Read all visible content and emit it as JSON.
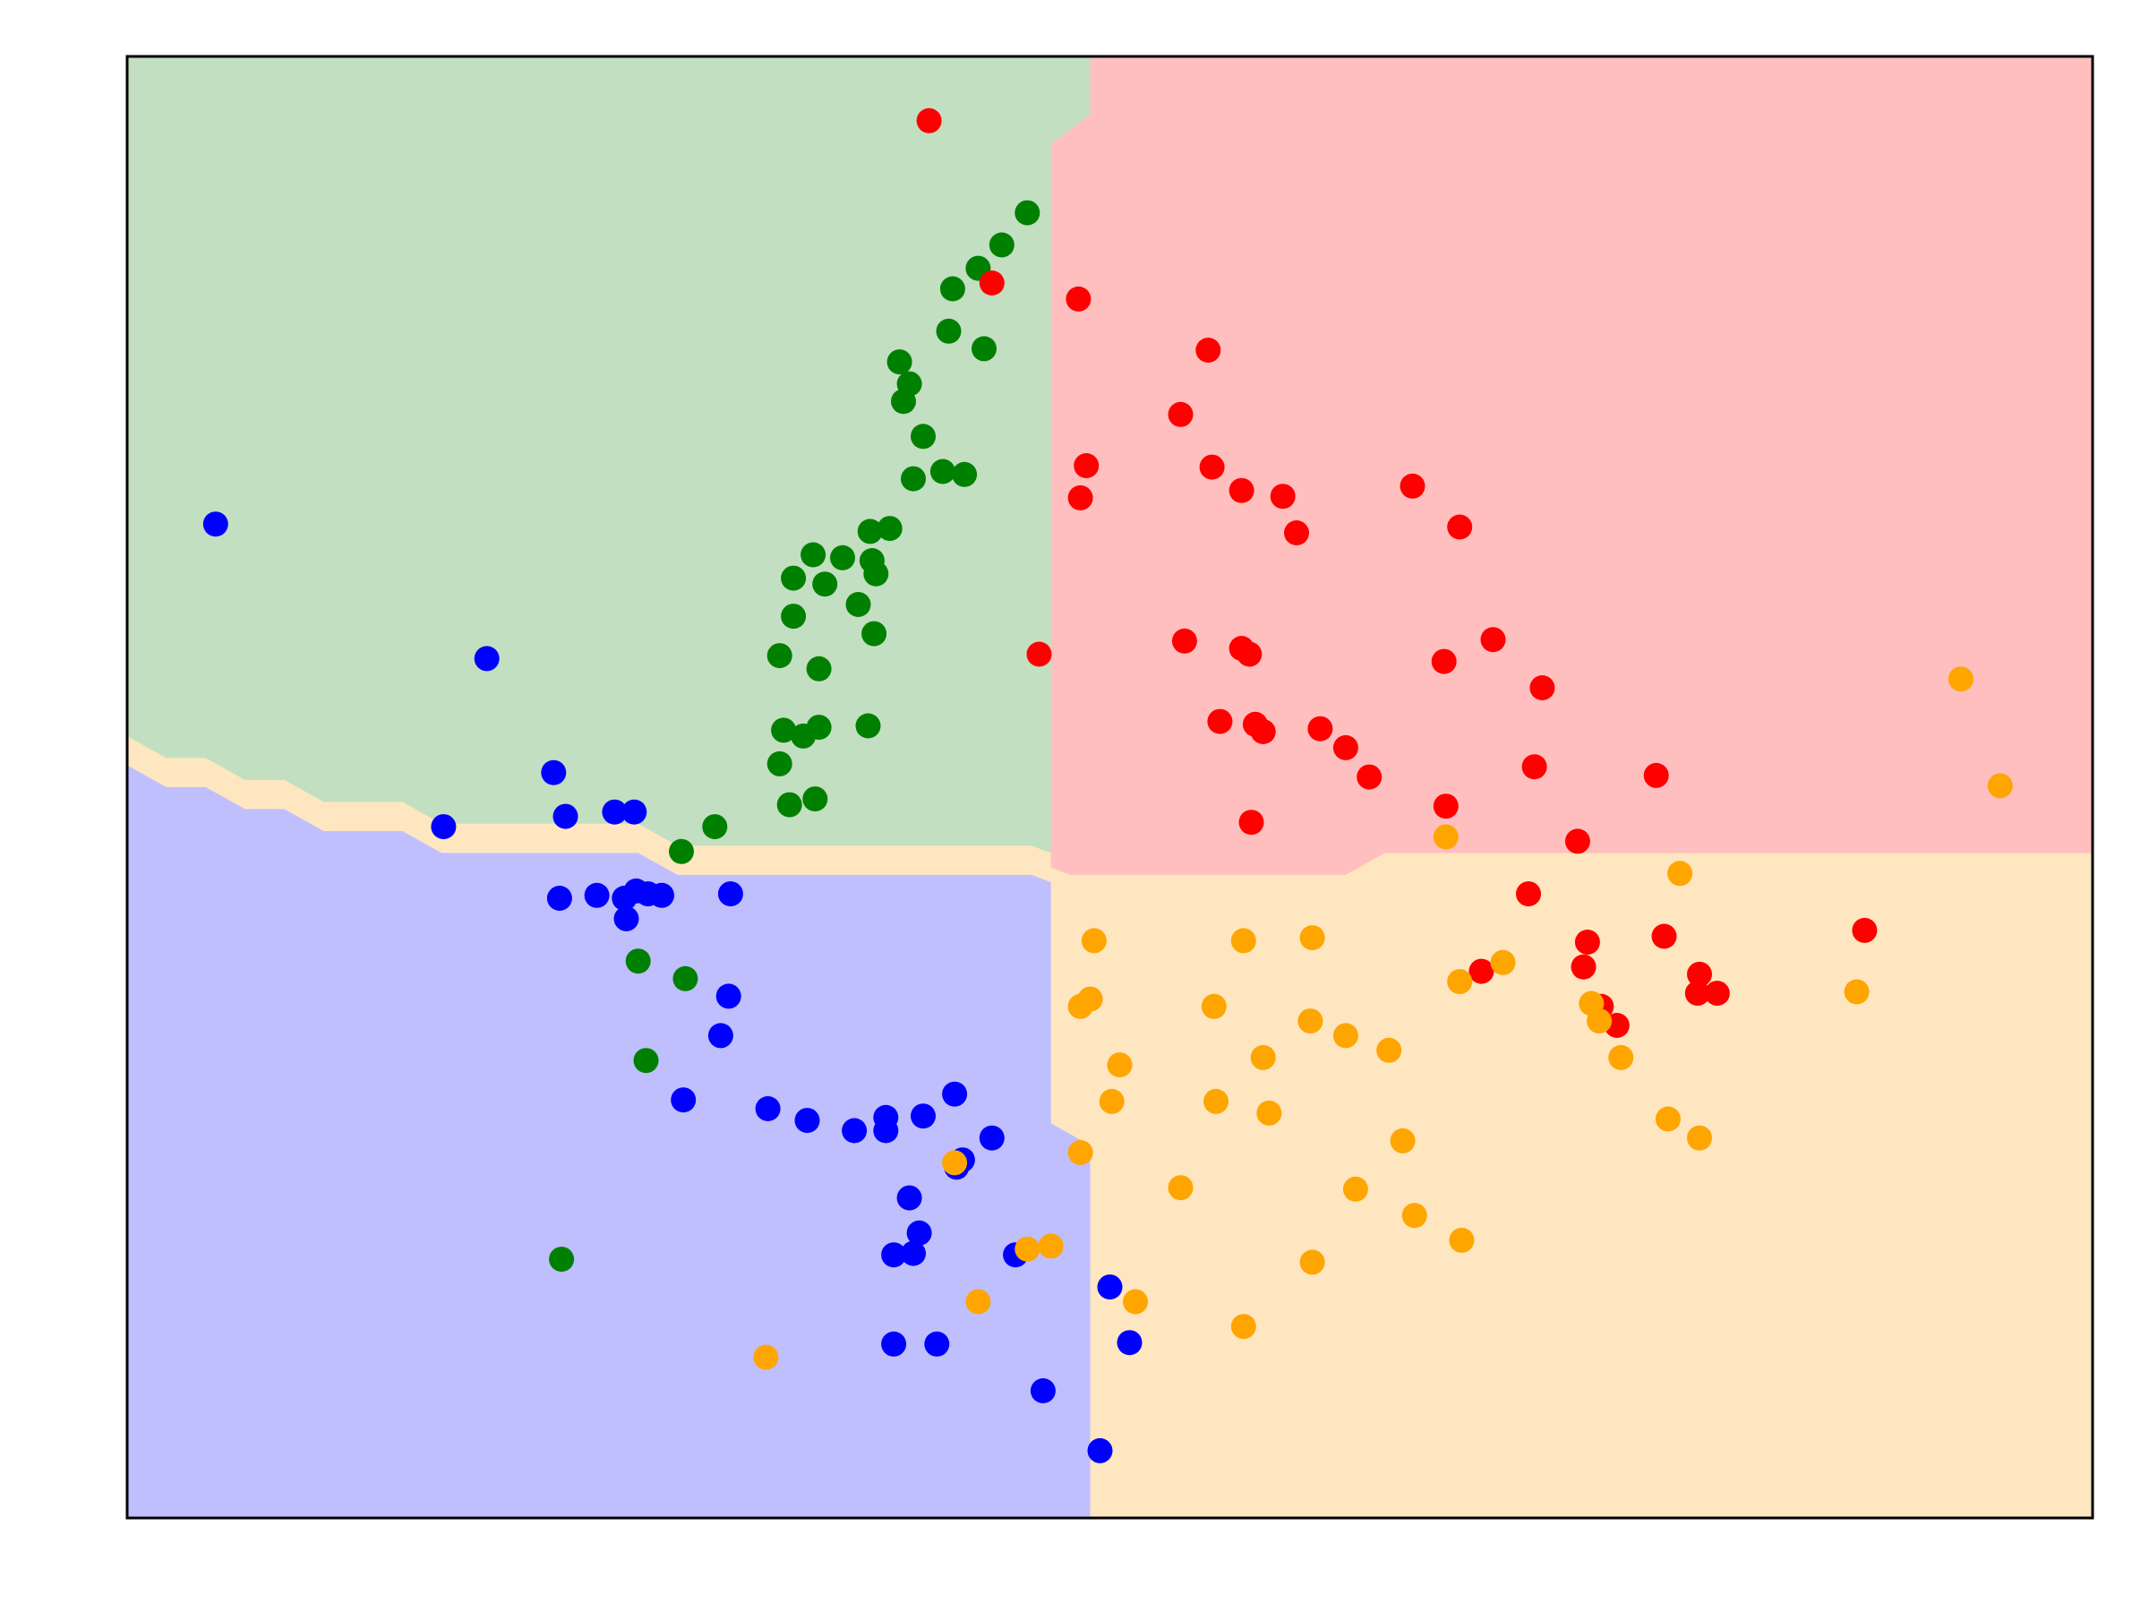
{
  "chart_data": {
    "type": "scatter",
    "title": "",
    "xlabel": "",
    "ylabel": "",
    "xlim": [
      0,
      10
    ],
    "ylim": [
      0,
      10
    ],
    "axes_visible": false,
    "grid": false,
    "legend": "none",
    "colors": {
      "blue": "#0000ff",
      "green": "#008000",
      "red": "#ff0000",
      "orange": "#ffa500",
      "region_blue": "#bfbffe",
      "region_green": "#c2dfc2",
      "region_red": "#ffbfbf",
      "region_orange": "#fee6c0"
    },
    "regions": [
      {
        "class": "green",
        "color": "region_green",
        "polygon": [
          [
            0,
            5.35
          ],
          [
            0.2,
            5.2
          ],
          [
            0.4,
            5.2
          ],
          [
            0.6,
            5.05
          ],
          [
            0.8,
            5.05
          ],
          [
            1.0,
            4.9
          ],
          [
            1.4,
            4.9
          ],
          [
            1.6,
            4.75
          ],
          [
            2.6,
            4.75
          ],
          [
            2.8,
            4.6
          ],
          [
            4.6,
            4.6
          ],
          [
            4.7,
            4.55
          ],
          [
            4.7,
            4.65
          ],
          [
            4.8,
            4.6
          ],
          [
            6.0,
            4.6
          ],
          [
            6.3,
            4.6
          ],
          [
            6.45,
            4.7
          ],
          [
            6.7,
            4.7
          ],
          [
            6.9,
            4.8
          ],
          [
            10,
            4.8
          ],
          [
            10,
            10
          ],
          [
            0,
            10
          ]
        ]
      },
      {
        "class": "red",
        "color": "region_red",
        "polygon": [
          [
            4.9,
            10
          ],
          [
            10,
            10
          ],
          [
            10,
            4.55
          ],
          [
            6.4,
            4.55
          ],
          [
            6.2,
            4.4
          ],
          [
            4.8,
            4.4
          ],
          [
            4.7,
            4.45
          ],
          [
            4.7,
            9.4
          ],
          [
            4.9,
            9.6
          ]
        ]
      },
      {
        "class": "orange",
        "color": "region_orange",
        "polygon": [
          [
            4.7,
            4.35
          ],
          [
            4.8,
            4.25
          ],
          [
            6.2,
            4.25
          ],
          [
            6.4,
            4.4
          ],
          [
            10,
            4.4
          ],
          [
            10,
            0
          ],
          [
            4.9,
            0
          ],
          [
            4.9,
            2.55
          ],
          [
            4.7,
            2.7
          ]
        ]
      },
      {
        "class": "blue",
        "color": "region_blue",
        "polygon": [
          [
            0,
            5.15
          ],
          [
            0.2,
            5.0
          ],
          [
            0.4,
            5.0
          ],
          [
            0.6,
            4.85
          ],
          [
            0.8,
            4.85
          ],
          [
            1.0,
            4.7
          ],
          [
            1.4,
            4.7
          ],
          [
            1.6,
            4.55
          ],
          [
            2.6,
            4.55
          ],
          [
            2.8,
            4.4
          ],
          [
            4.6,
            4.4
          ],
          [
            4.7,
            4.35
          ],
          [
            4.7,
            2.7
          ],
          [
            4.9,
            2.55
          ],
          [
            4.9,
            0
          ],
          [
            0,
            0
          ]
        ]
      }
    ],
    "series": [
      {
        "color": "blue",
        "points": [
          [
            0.45,
            6.8
          ],
          [
            1.83,
            5.88
          ],
          [
            2.17,
            5.1
          ],
          [
            1.61,
            4.73
          ],
          [
            2.23,
            4.8
          ],
          [
            2.48,
            4.83
          ],
          [
            2.58,
            4.83
          ],
          [
            2.2,
            4.24
          ],
          [
            2.39,
            4.26
          ],
          [
            2.53,
            4.24
          ],
          [
            2.59,
            4.29
          ],
          [
            2.65,
            4.27
          ],
          [
            2.72,
            4.26
          ],
          [
            2.54,
            4.1
          ],
          [
            3.07,
            4.27
          ],
          [
            3.06,
            3.57
          ],
          [
            3.02,
            3.3
          ],
          [
            2.83,
            2.86
          ],
          [
            3.26,
            2.8
          ],
          [
            3.46,
            2.72
          ],
          [
            3.7,
            2.65
          ],
          [
            3.86,
            2.74
          ],
          [
            3.86,
            2.65
          ],
          [
            4.05,
            2.75
          ],
          [
            4.21,
            2.9
          ],
          [
            4.4,
            2.6
          ],
          [
            4.25,
            2.45
          ],
          [
            3.98,
            2.19
          ],
          [
            4.03,
            1.95
          ],
          [
            3.9,
            1.8
          ],
          [
            4.0,
            1.81
          ],
          [
            4.52,
            1.8
          ],
          [
            4.22,
            2.4
          ],
          [
            5.0,
            1.58
          ],
          [
            5.1,
            1.2
          ],
          [
            3.9,
            1.19
          ],
          [
            4.12,
            1.19
          ],
          [
            4.66,
            0.87
          ],
          [
            4.95,
            0.46
          ]
        ]
      },
      {
        "color": "green",
        "points": [
          [
            4.58,
            8.93
          ],
          [
            4.45,
            8.71
          ],
          [
            4.2,
            8.41
          ],
          [
            4.18,
            8.12
          ],
          [
            4.36,
            8.0
          ],
          [
            3.93,
            7.91
          ],
          [
            3.98,
            7.76
          ],
          [
            3.95,
            7.64
          ],
          [
            4.05,
            7.4
          ],
          [
            4.0,
            7.11
          ],
          [
            4.15,
            7.16
          ],
          [
            4.26,
            7.14
          ],
          [
            3.78,
            6.75
          ],
          [
            3.88,
            6.77
          ],
          [
            3.49,
            6.59
          ],
          [
            3.64,
            6.57
          ],
          [
            3.79,
            6.55
          ],
          [
            3.81,
            6.46
          ],
          [
            3.39,
            6.43
          ],
          [
            3.55,
            6.39
          ],
          [
            3.72,
            6.25
          ],
          [
            3.39,
            6.17
          ],
          [
            3.8,
            6.05
          ],
          [
            3.32,
            5.9
          ],
          [
            3.52,
            5.81
          ],
          [
            3.34,
            5.39
          ],
          [
            3.52,
            5.41
          ],
          [
            3.77,
            5.42
          ],
          [
            3.44,
            5.35
          ],
          [
            3.32,
            5.16
          ],
          [
            3.5,
            4.92
          ],
          [
            3.37,
            4.88
          ],
          [
            2.99,
            4.73
          ],
          [
            2.82,
            4.56
          ],
          [
            2.6,
            3.81
          ],
          [
            2.84,
            3.69
          ],
          [
            2.64,
            3.13
          ],
          [
            2.21,
            1.77
          ],
          [
            4.33,
            8.55
          ]
        ]
      },
      {
        "color": "red",
        "points": [
          [
            4.08,
            9.56
          ],
          [
            4.4,
            8.45
          ],
          [
            4.84,
            8.34
          ],
          [
            5.5,
            7.99
          ],
          [
            5.36,
            7.55
          ],
          [
            4.88,
            7.2
          ],
          [
            4.85,
            6.98
          ],
          [
            5.52,
            7.19
          ],
          [
            5.67,
            7.03
          ],
          [
            5.88,
            6.99
          ],
          [
            6.54,
            7.06
          ],
          [
            6.78,
            6.78
          ],
          [
            5.95,
            6.74
          ],
          [
            5.38,
            6.0
          ],
          [
            5.67,
            5.95
          ],
          [
            5.71,
            5.91
          ],
          [
            6.7,
            5.86
          ],
          [
            6.95,
            6.01
          ],
          [
            4.64,
            5.91
          ],
          [
            7.2,
            5.68
          ],
          [
            5.56,
            5.45
          ],
          [
            5.74,
            5.43
          ],
          [
            5.78,
            5.38
          ],
          [
            6.07,
            5.4
          ],
          [
            6.2,
            5.27
          ],
          [
            6.32,
            5.07
          ],
          [
            7.16,
            5.14
          ],
          [
            6.71,
            4.87
          ],
          [
            7.78,
            5.08
          ],
          [
            7.38,
            4.63
          ],
          [
            5.72,
            4.76
          ],
          [
            7.13,
            4.27
          ],
          [
            7.43,
            3.94
          ],
          [
            7.82,
            3.98
          ],
          [
            8.0,
            3.72
          ],
          [
            8.84,
            4.02
          ],
          [
            7.41,
            3.77
          ],
          [
            6.89,
            3.74
          ],
          [
            7.5,
            3.5
          ],
          [
            7.99,
            3.59
          ],
          [
            8.09,
            3.59
          ],
          [
            7.58,
            3.37
          ]
        ]
      },
      {
        "color": "orange",
        "points": [
          [
            9.33,
            5.74
          ],
          [
            9.53,
            5.01
          ],
          [
            6.71,
            4.66
          ],
          [
            7.9,
            4.41
          ],
          [
            4.92,
            3.95
          ],
          [
            5.68,
            3.95
          ],
          [
            6.03,
            3.97
          ],
          [
            7.0,
            3.8
          ],
          [
            6.78,
            3.67
          ],
          [
            8.8,
            3.6
          ],
          [
            4.85,
            3.5
          ],
          [
            4.9,
            3.55
          ],
          [
            5.53,
            3.5
          ],
          [
            6.02,
            3.4
          ],
          [
            6.2,
            3.3
          ],
          [
            6.42,
            3.2
          ],
          [
            7.45,
            3.52
          ],
          [
            7.49,
            3.4
          ],
          [
            5.05,
            3.1
          ],
          [
            5.78,
            3.15
          ],
          [
            7.6,
            3.15
          ],
          [
            5.01,
            2.85
          ],
          [
            5.54,
            2.85
          ],
          [
            5.81,
            2.77
          ],
          [
            6.49,
            2.58
          ],
          [
            7.84,
            2.73
          ],
          [
            8.0,
            2.6
          ],
          [
            4.85,
            2.5
          ],
          [
            4.21,
            2.43
          ],
          [
            5.36,
            2.26
          ],
          [
            6.25,
            2.25
          ],
          [
            6.55,
            2.07
          ],
          [
            6.79,
            1.9
          ],
          [
            4.58,
            1.84
          ],
          [
            4.7,
            1.86
          ],
          [
            6.03,
            1.75
          ],
          [
            5.13,
            1.48
          ],
          [
            4.33,
            1.48
          ],
          [
            5.68,
            1.31
          ],
          [
            3.25,
            1.1
          ]
        ]
      }
    ]
  }
}
